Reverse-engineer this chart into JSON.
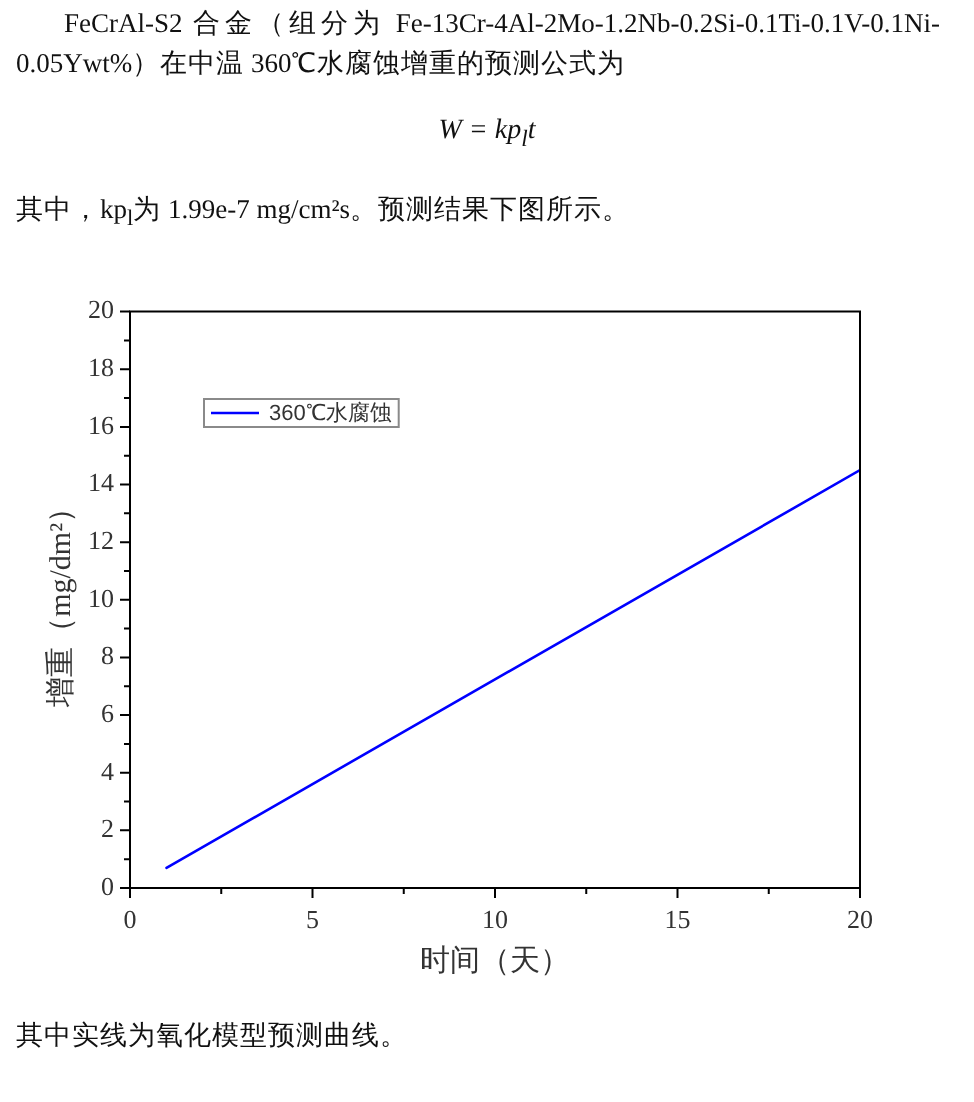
{
  "chart_data": {
    "type": "line",
    "annotations": [
      "FeCrAl-S2 合金（组分为 Fe-13Cr-4Al-2Mo-1.2Nb-0.2Si-0.1Ti-0.1V-0.1Ni-0.05Ywt%）在中温 360℃水腐蚀增重的预测公式为",
      "W = kp$_{l}$t",
      "其中，kp$_{l}$为 1.99e-7 mg/cm²s。预测结果下图所示。",
      "其中实线为氧化模型预测曲线。"
    ],
    "xlabel": "时间（天）",
    "ylabel": "增重（mg/dm²）",
    "x": [
      1,
      20
    ],
    "series": [
      {
        "name": "360℃水腐蚀",
        "color": "#0000ff",
        "values": [
          0.7,
          14.5
        ]
      }
    ],
    "xlim": [
      0,
      20
    ],
    "xticks": [
      0,
      {
        "value": 2.5,
        "label": null
      },
      5,
      {
        "value": 7.5,
        "label": null
      },
      10,
      {
        "value": 12.5,
        "label": null
      },
      15,
      {
        "value": 17.5,
        "label": null
      },
      20
    ],
    "ylim": [
      0,
      20
    ],
    "yticks": [
      0,
      {
        "value": 1,
        "label": null
      },
      2,
      {
        "value": 3,
        "label": null
      },
      4,
      {
        "value": 5,
        "label": null
      },
      6,
      {
        "value": 7,
        "label": null
      },
      8,
      {
        "value": 9,
        "label": null
      },
      10,
      {
        "value": 11,
        "label": null
      },
      12,
      {
        "value": 13,
        "label": null
      },
      14,
      {
        "value": 15,
        "label": null
      },
      16,
      {
        "value": 17,
        "label": null
      },
      18,
      {
        "value": 19,
        "label": null
      },
      20
    ],
    "legend": "top left",
    "marker": "none",
    "line_style": "solid"
  }
}
